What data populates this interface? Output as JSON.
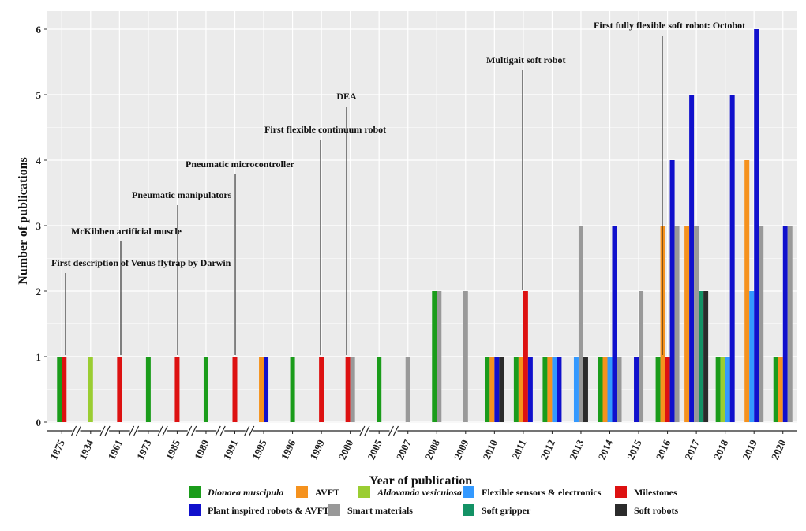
{
  "chart_data": {
    "type": "bar",
    "xlabel": "Year of publication",
    "ylabel": "Number of publications",
    "ylim": [
      0,
      6
    ],
    "yticks": [
      0,
      1,
      2,
      3,
      4,
      5,
      6
    ],
    "grid": true,
    "legend_position": "bottom",
    "categories": [
      "1875",
      "1934",
      "1961",
      "1973",
      "1985",
      "1989",
      "1991",
      "1995",
      "1996",
      "1999",
      "2000",
      "2005",
      "2007",
      "2008",
      "2009",
      "2010",
      "2011",
      "2012",
      "2013",
      "2014",
      "2015",
      "2016",
      "2017",
      "2018",
      "2019",
      "2020"
    ],
    "series": [
      {
        "name": "Dionaea muscipula",
        "italic": true,
        "color": "#1a9c1a",
        "values": [
          1,
          0,
          0,
          1,
          0,
          1,
          0,
          0,
          1,
          0,
          0,
          1,
          0,
          2,
          0,
          1,
          1,
          1,
          0,
          1,
          0,
          1,
          0,
          1,
          0,
          1
        ]
      },
      {
        "name": "AVFT",
        "italic": false,
        "color": "#f5921e",
        "values": [
          0,
          0,
          0,
          0,
          0,
          0,
          0,
          1,
          0,
          0,
          0,
          0,
          0,
          0,
          0,
          1,
          1,
          1,
          0,
          1,
          0,
          3,
          3,
          0,
          4,
          1
        ]
      },
      {
        "name": "Aldovanda vesiculosa",
        "italic": true,
        "color": "#9acd32",
        "values": [
          0,
          1,
          0,
          0,
          0,
          0,
          0,
          0,
          0,
          0,
          0,
          0,
          0,
          0,
          0,
          0,
          0,
          0,
          0,
          0,
          0,
          0,
          0,
          1,
          0,
          0
        ]
      },
      {
        "name": "Flexible sensors & electronics",
        "italic": false,
        "color": "#3399ff",
        "values": [
          0,
          0,
          0,
          0,
          0,
          0,
          0,
          0,
          0,
          0,
          0,
          0,
          0,
          0,
          0,
          0,
          0,
          1,
          1,
          1,
          0,
          0,
          0,
          1,
          2,
          0
        ]
      },
      {
        "name": "Milestones",
        "italic": false,
        "color": "#dd1111",
        "values": [
          1,
          0,
          1,
          0,
          1,
          0,
          1,
          0,
          0,
          1,
          1,
          0,
          0,
          0,
          0,
          0,
          2,
          0,
          0,
          0,
          0,
          1,
          0,
          0,
          0,
          0
        ]
      },
      {
        "name": "Plant inspired robots & AVFT",
        "italic": false,
        "color": "#1010cc",
        "values": [
          0,
          0,
          0,
          0,
          0,
          0,
          0,
          1,
          0,
          0,
          0,
          0,
          0,
          0,
          0,
          1,
          1,
          1,
          0,
          3,
          1,
          4,
          5,
          5,
          6,
          3
        ]
      },
      {
        "name": "Smart materials",
        "italic": false,
        "color": "#999999",
        "values": [
          0,
          0,
          0,
          0,
          0,
          0,
          0,
          0,
          0,
          0,
          1,
          0,
          1,
          2,
          2,
          0,
          0,
          0,
          3,
          1,
          2,
          3,
          3,
          0,
          3,
          3
        ]
      },
      {
        "name": "Soft gripper",
        "italic": false,
        "color": "#139265",
        "values": [
          0,
          0,
          0,
          0,
          0,
          0,
          0,
          0,
          0,
          0,
          0,
          0,
          0,
          0,
          0,
          0,
          0,
          0,
          0,
          0,
          0,
          0,
          2,
          0,
          0,
          0
        ]
      },
      {
        "name": "Soft robots",
        "italic": false,
        "color": "#2b2b2b",
        "values": [
          0,
          0,
          0,
          0,
          0,
          0,
          0,
          0,
          0,
          0,
          0,
          0,
          0,
          0,
          0,
          1,
          0,
          0,
          1,
          0,
          0,
          0,
          2,
          0,
          0,
          0
        ]
      }
    ],
    "annotations": [
      {
        "text": "First description of Venus flytrap by Darwin",
        "year": "1875"
      },
      {
        "text": "McKibben artificial muscle",
        "year": "1961"
      },
      {
        "text": "Pneumatic manipulators",
        "year": "1985"
      },
      {
        "text": "Pneumatic microcontroller",
        "year": "1991"
      },
      {
        "text": "First flexible continuum robot",
        "year": "1999"
      },
      {
        "text": "DEA",
        "year": "2000"
      },
      {
        "text": "Multigait soft robot",
        "year": "2011"
      },
      {
        "text": "First fully flexible soft robot: Octobot",
        "year": "2016"
      }
    ],
    "axis_breaks_after": [
      "1875",
      "1934",
      "1961",
      "1973",
      "1985",
      "1989",
      "1991",
      "2000",
      "2005"
    ]
  }
}
